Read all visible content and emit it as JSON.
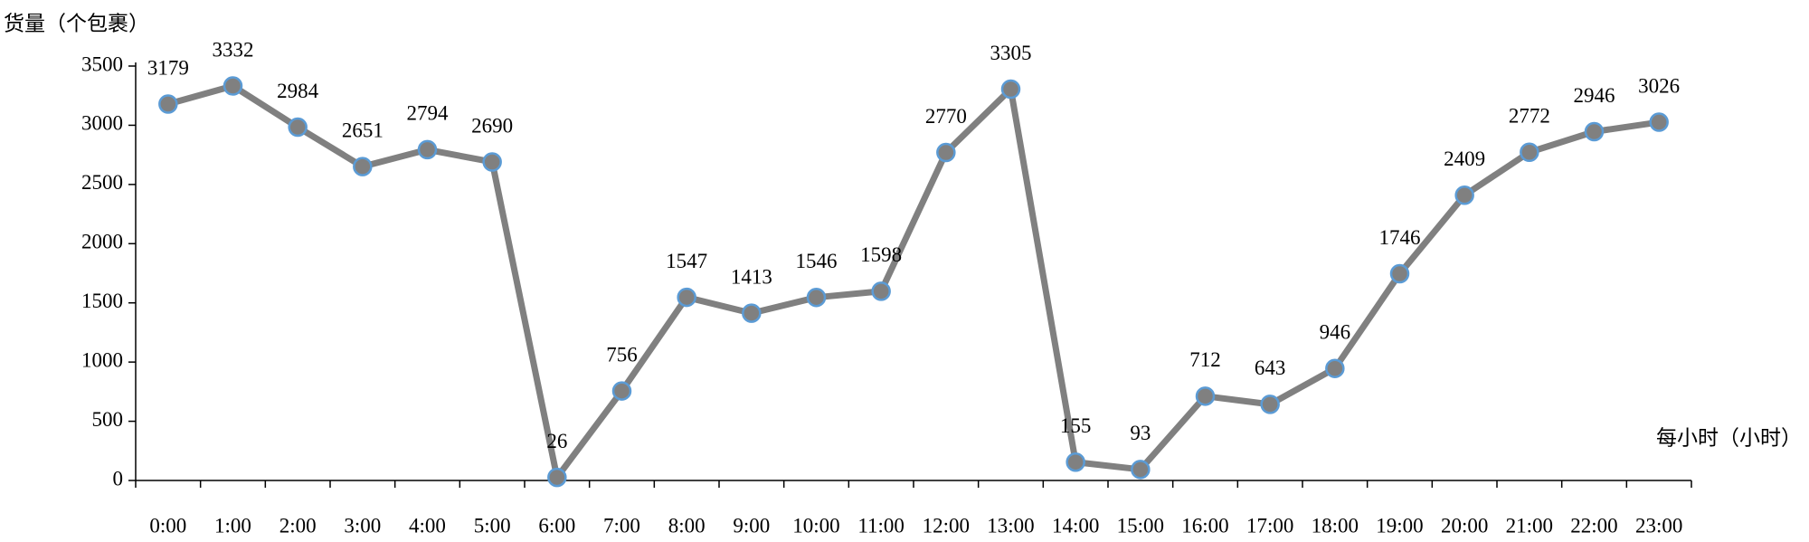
{
  "chart_data": {
    "type": "line",
    "y_axis_title": "货量（个包裹）",
    "x_axis_title": "每小时（小时）",
    "categories": [
      "0:00",
      "1:00",
      "2:00",
      "3:00",
      "4:00",
      "5:00",
      "6:00",
      "7:00",
      "8:00",
      "9:00",
      "10:00",
      "11:00",
      "12:00",
      "13:00",
      "14:00",
      "15:00",
      "16:00",
      "17:00",
      "18:00",
      "19:00",
      "20:00",
      "21:00",
      "22:00",
      "23:00"
    ],
    "series": [
      {
        "name": "货量",
        "color": "#808080",
        "marker_edge_color": "#5b9bd5",
        "values": [
          3179,
          3332,
          2984,
          2651,
          2794,
          2690,
          26,
          756,
          1547,
          1413,
          1546,
          1598,
          2770,
          3305,
          155,
          93,
          712,
          643,
          946,
          1746,
          2409,
          2772,
          2946,
          3026
        ]
      }
    ],
    "ylim": [
      0,
      3500
    ],
    "yticks": [
      0,
      500,
      1000,
      1500,
      2000,
      2500,
      3000,
      3500
    ],
    "grid": false
  }
}
